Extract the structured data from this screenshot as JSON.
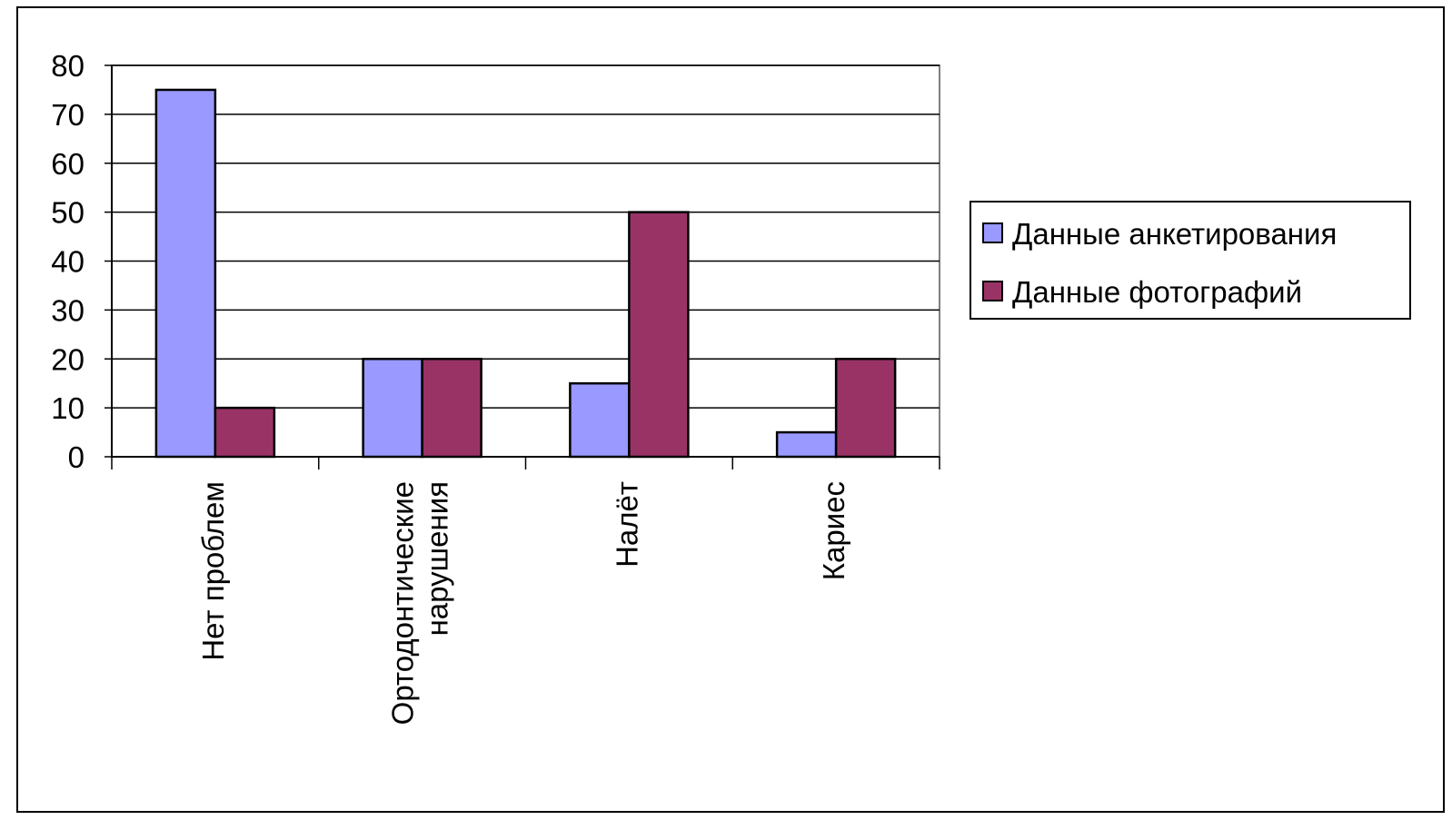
{
  "chart_data": {
    "type": "bar",
    "categories": [
      [
        "Нет проблем"
      ],
      [
        "Ортодонтические",
        "нарушения"
      ],
      [
        "Налёт"
      ],
      [
        "Кариес"
      ]
    ],
    "series": [
      {
        "name": "Данные анкетирования",
        "values": [
          75,
          20,
          15,
          5
        ],
        "color": "#9999ff"
      },
      {
        "name": "Данные фотографий",
        "values": [
          10,
          20,
          50,
          20
        ],
        "color": "#993366"
      }
    ],
    "y_ticks": [
      "0",
      "10",
      "20",
      "30",
      "40",
      "50",
      "60",
      "70",
      "80"
    ],
    "ylim": [
      0,
      80
    ],
    "grid": true,
    "legend": "right",
    "plot_background": "#ffffff",
    "gridline_color": "#000000"
  }
}
